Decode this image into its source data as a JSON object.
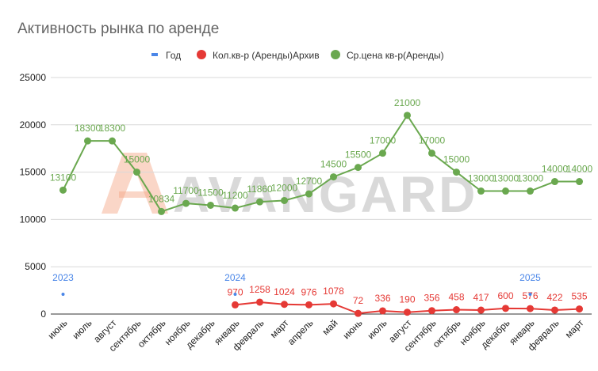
{
  "chart_data": {
    "type": "line",
    "title": "Активность рынка по аренде",
    "watermark": "AVANGARD",
    "categories": [
      "июнь",
      "июль",
      "август",
      "сентябрь",
      "октябрь",
      "ноябрь",
      "декабрь",
      "январь",
      "февраль",
      "март",
      "апрель",
      "май",
      "июнь",
      "июль",
      "август",
      "сентябрь",
      "октябрь",
      "ноябрь",
      "декабрь",
      "январь",
      "февраль",
      "март"
    ],
    "ylim": [
      0,
      25000
    ],
    "yticks": [
      0,
      5000,
      10000,
      15000,
      20000,
      25000
    ],
    "grid": true,
    "legend_position": "top",
    "series": [
      {
        "name": "Год",
        "color": "#4a86e8",
        "points": [
          {
            "index": 0,
            "value": 2023
          },
          {
            "index": 7,
            "value": 2024
          },
          {
            "index": 19,
            "value": 2025
          }
        ]
      },
      {
        "name": "Кол.кв-р (Аренды)Архив",
        "color": "#e53935",
        "values": [
          null,
          null,
          null,
          null,
          null,
          null,
          null,
          970,
          1258,
          1024,
          976,
          1078,
          72,
          336,
          190,
          356,
          458,
          417,
          600,
          576,
          422,
          535
        ]
      },
      {
        "name": "Ср.цена кв-р(Аренды)",
        "color": "#6aa84f",
        "values": [
          13100,
          18300,
          18300,
          15000,
          10834,
          11700,
          11500,
          11200,
          11860,
          12000,
          12700,
          14500,
          15500,
          17000,
          21000,
          17000,
          15000,
          13000,
          13000,
          13000,
          14000,
          14000
        ]
      }
    ]
  }
}
